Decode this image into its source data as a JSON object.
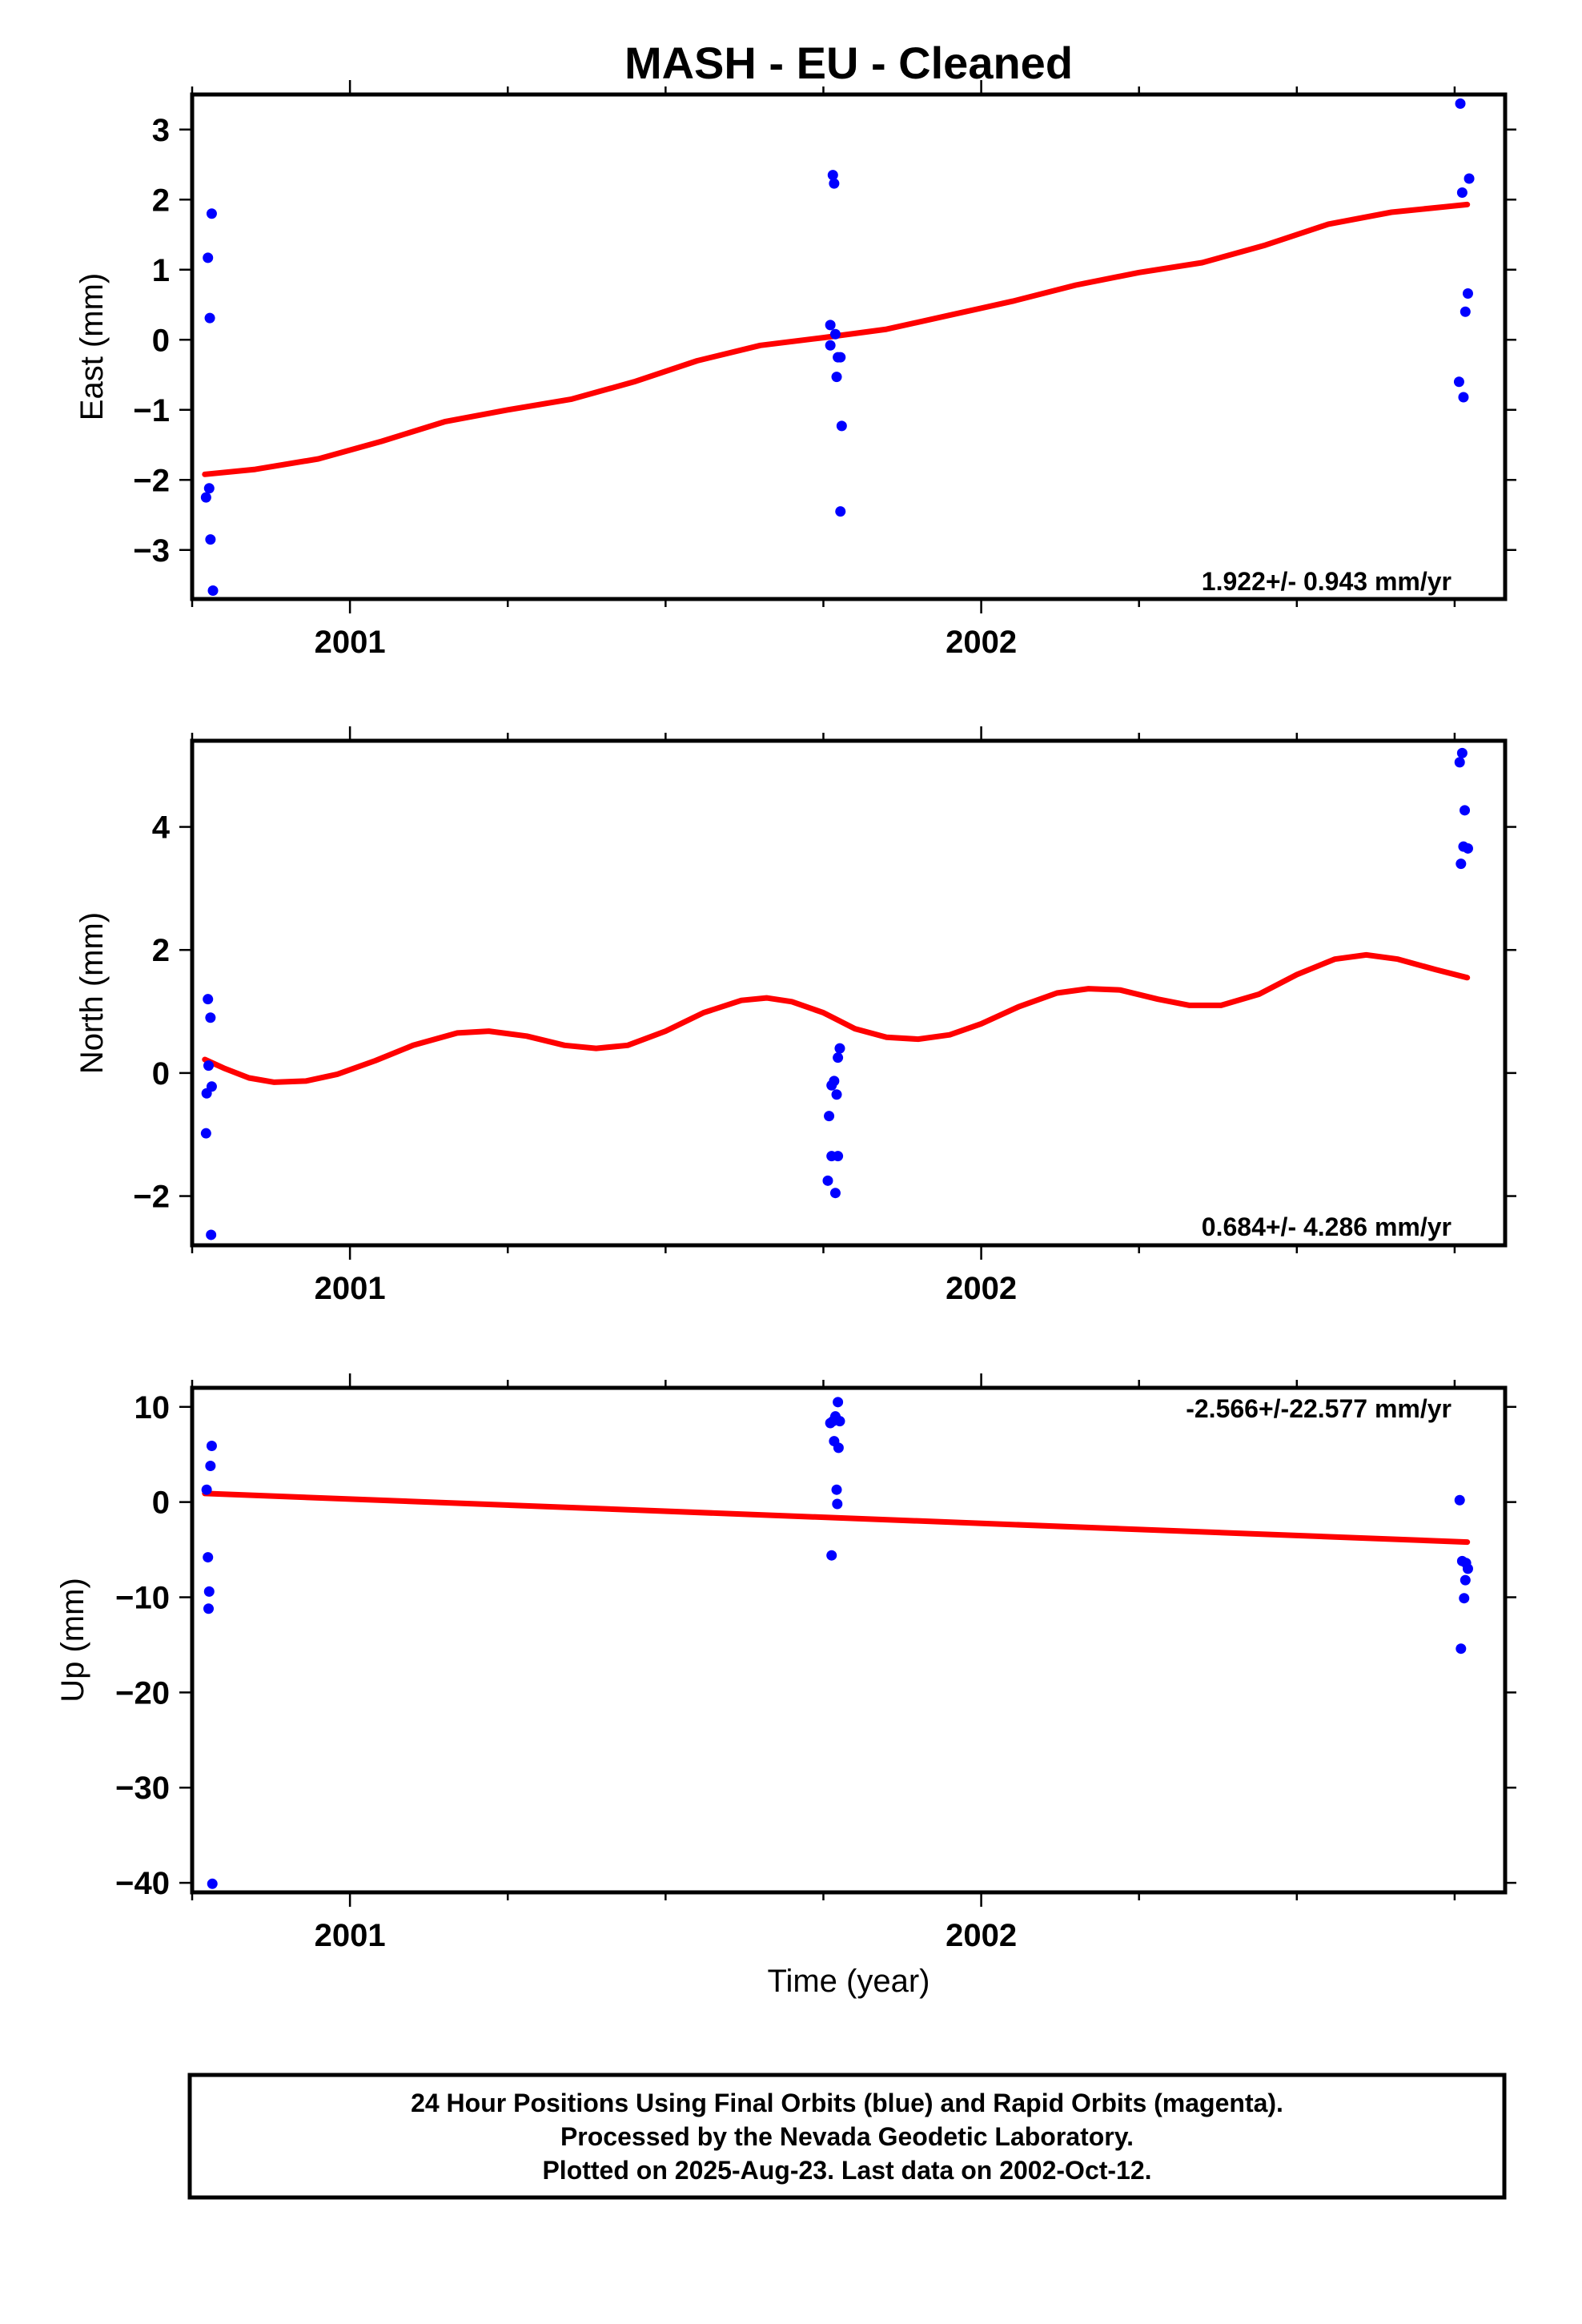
{
  "title": "MASH  - EU - Cleaned",
  "xlabel": "Time (year)",
  "footer": [
    "24 Hour Positions Using Final Orbits (blue) and Rapid Orbits (magenta).",
    "Processed by the Nevada Geodetic Laboratory.",
    "Plotted on 2025-Aug-23. Last data on 2002-Oct-12."
  ],
  "colors": {
    "points": "#0000ff",
    "fit": "#ff0000",
    "frame": "#000000"
  },
  "chart_data": [
    {
      "type": "scatter",
      "ylabel": "East (mm)",
      "rate_text": "1.922+/- 0.943 mm/yr",
      "xlim": [
        2000.75,
        2002.83
      ],
      "ylim": [
        -3.7,
        3.5
      ],
      "xticks": [
        2001,
        2002
      ],
      "xtick_labels": [
        "2001",
        "2002"
      ],
      "xminor": [
        2000.75,
        2001.25,
        2001.5,
        2001.75,
        2002.25,
        2002.5,
        2002.75
      ],
      "yticks": [
        3,
        2,
        1,
        0,
        -1,
        -2,
        -3
      ],
      "ytick_labels": [
        "3",
        "2",
        "1",
        "0",
        "−1",
        "−2",
        "−3"
      ],
      "grid": false,
      "points": [
        [
          2000.772,
          -2.25
        ],
        [
          2000.777,
          -2.12
        ],
        [
          2000.779,
          -2.85
        ],
        [
          2000.783,
          -3.58
        ],
        [
          2000.775,
          1.17
        ],
        [
          2000.781,
          1.8
        ],
        [
          2000.778,
          0.31
        ],
        [
          2001.765,
          2.35
        ],
        [
          2001.767,
          2.23
        ],
        [
          2001.761,
          0.21
        ],
        [
          2001.761,
          -0.08
        ],
        [
          2001.769,
          0.08
        ],
        [
          2001.773,
          -0.25
        ],
        [
          2001.777,
          -0.25
        ],
        [
          2001.771,
          -0.53
        ],
        [
          2001.779,
          -1.23
        ],
        [
          2001.777,
          -2.45
        ],
        [
          2002.759,
          3.37
        ],
        [
          2002.762,
          2.1
        ],
        [
          2002.773,
          2.3
        ],
        [
          2002.771,
          0.66
        ],
        [
          2002.767,
          0.4
        ],
        [
          2002.757,
          -0.6
        ],
        [
          2002.764,
          -0.82
        ]
      ],
      "fit": [
        [
          2000.77,
          -1.92
        ],
        [
          2000.85,
          -1.85
        ],
        [
          2000.95,
          -1.7
        ],
        [
          2001.05,
          -1.45
        ],
        [
          2001.15,
          -1.17
        ],
        [
          2001.25,
          -1.0
        ],
        [
          2001.35,
          -0.85
        ],
        [
          2001.45,
          -0.6
        ],
        [
          2001.55,
          -0.3
        ],
        [
          2001.65,
          -0.08
        ],
        [
          2001.75,
          0.03
        ],
        [
          2001.85,
          0.15
        ],
        [
          2001.95,
          0.35
        ],
        [
          2002.05,
          0.55
        ],
        [
          2002.15,
          0.78
        ],
        [
          2002.25,
          0.96
        ],
        [
          2002.35,
          1.1
        ],
        [
          2002.45,
          1.35
        ],
        [
          2002.55,
          1.65
        ],
        [
          2002.65,
          1.82
        ],
        [
          2002.77,
          1.93
        ]
      ]
    },
    {
      "type": "scatter",
      "ylabel": "North (mm)",
      "rate_text": "0.684+/- 4.286 mm/yr",
      "xlim": [
        2000.75,
        2002.83
      ],
      "ylim": [
        -2.8,
        5.4
      ],
      "xticks": [
        2001,
        2002
      ],
      "xtick_labels": [
        "2001",
        "2002"
      ],
      "xminor": [
        2000.75,
        2001.25,
        2001.5,
        2001.75,
        2002.25,
        2002.5,
        2002.75
      ],
      "yticks": [
        4,
        2,
        0,
        -2
      ],
      "ytick_labels": [
        "4",
        "2",
        "0",
        "−2"
      ],
      "grid": false,
      "points": [
        [
          2000.775,
          1.2
        ],
        [
          2000.779,
          0.9
        ],
        [
          2000.776,
          0.12
        ],
        [
          2000.773,
          -0.33
        ],
        [
          2000.781,
          -0.22
        ],
        [
          2000.772,
          -0.98
        ],
        [
          2000.78,
          -2.63
        ],
        [
          2001.759,
          -0.7
        ],
        [
          2001.763,
          -0.2
        ],
        [
          2001.767,
          -0.13
        ],
        [
          2001.771,
          -0.35
        ],
        [
          2001.773,
          0.25
        ],
        [
          2001.776,
          0.4
        ],
        [
          2001.763,
          -1.35
        ],
        [
          2001.773,
          -1.35
        ],
        [
          2001.757,
          -1.75
        ],
        [
          2001.769,
          -1.95
        ],
        [
          2002.762,
          5.2
        ],
        [
          2002.758,
          5.05
        ],
        [
          2002.766,
          4.27
        ],
        [
          2002.764,
          3.68
        ],
        [
          2002.771,
          3.65
        ],
        [
          2002.76,
          3.4
        ]
      ],
      "fit": [
        [
          2000.77,
          0.22
        ],
        [
          2000.8,
          0.08
        ],
        [
          2000.84,
          -0.08
        ],
        [
          2000.88,
          -0.15
        ],
        [
          2000.93,
          -0.13
        ],
        [
          2000.98,
          -0.02
        ],
        [
          2001.04,
          0.2
        ],
        [
          2001.1,
          0.45
        ],
        [
          2001.17,
          0.65
        ],
        [
          2001.22,
          0.68
        ],
        [
          2001.28,
          0.6
        ],
        [
          2001.34,
          0.45
        ],
        [
          2001.39,
          0.4
        ],
        [
          2001.44,
          0.45
        ],
        [
          2001.5,
          0.68
        ],
        [
          2001.56,
          0.98
        ],
        [
          2001.62,
          1.18
        ],
        [
          2001.66,
          1.22
        ],
        [
          2001.7,
          1.16
        ],
        [
          2001.75,
          0.98
        ],
        [
          2001.8,
          0.72
        ],
        [
          2001.85,
          0.58
        ],
        [
          2001.9,
          0.55
        ],
        [
          2001.95,
          0.62
        ],
        [
          2002.0,
          0.8
        ],
        [
          2002.06,
          1.08
        ],
        [
          2002.12,
          1.3
        ],
        [
          2002.17,
          1.37
        ],
        [
          2002.22,
          1.35
        ],
        [
          2002.28,
          1.2
        ],
        [
          2002.33,
          1.1
        ],
        [
          2002.38,
          1.1
        ],
        [
          2002.44,
          1.28
        ],
        [
          2002.5,
          1.6
        ],
        [
          2002.56,
          1.85
        ],
        [
          2002.61,
          1.92
        ],
        [
          2002.66,
          1.85
        ],
        [
          2002.72,
          1.68
        ],
        [
          2002.77,
          1.55
        ]
      ]
    },
    {
      "type": "scatter",
      "ylabel": "Up (mm)",
      "rate_text": "-2.566+/-22.577 mm/yr",
      "xlim": [
        2000.75,
        2002.83
      ],
      "ylim": [
        -41,
        12
      ],
      "xticks": [
        2001,
        2002
      ],
      "xtick_labels": [
        "2001",
        "2002"
      ],
      "xminor": [
        2000.75,
        2001.25,
        2001.5,
        2001.75,
        2002.25,
        2002.5,
        2002.75
      ],
      "yticks": [
        10,
        0,
        -10,
        -20,
        -30,
        -40
      ],
      "ytick_labels": [
        "10",
        "0",
        "−10",
        "−20",
        "−30",
        "−40"
      ],
      "grid": false,
      "points": [
        [
          2000.781,
          5.9
        ],
        [
          2000.779,
          3.8
        ],
        [
          2000.773,
          1.3
        ],
        [
          2000.775,
          -5.8
        ],
        [
          2000.777,
          -9.4
        ],
        [
          2000.776,
          -11.2
        ],
        [
          2000.782,
          -40.1
        ],
        [
          2001.773,
          10.5
        ],
        [
          2001.769,
          9.0
        ],
        [
          2001.761,
          8.3
        ],
        [
          2001.765,
          8.5
        ],
        [
          2001.776,
          8.5
        ],
        [
          2001.767,
          6.4
        ],
        [
          2001.774,
          5.7
        ],
        [
          2001.771,
          1.3
        ],
        [
          2001.772,
          -0.2
        ],
        [
          2001.763,
          -5.6
        ],
        [
          2002.758,
          0.2
        ],
        [
          2002.762,
          -6.2
        ],
        [
          2002.768,
          -6.4
        ],
        [
          2002.771,
          -7.0
        ],
        [
          2002.767,
          -8.2
        ],
        [
          2002.765,
          -10.1
        ],
        [
          2002.76,
          -15.4
        ]
      ],
      "fit": [
        [
          2000.77,
          0.9
        ],
        [
          2002.77,
          -4.2
        ]
      ]
    }
  ]
}
